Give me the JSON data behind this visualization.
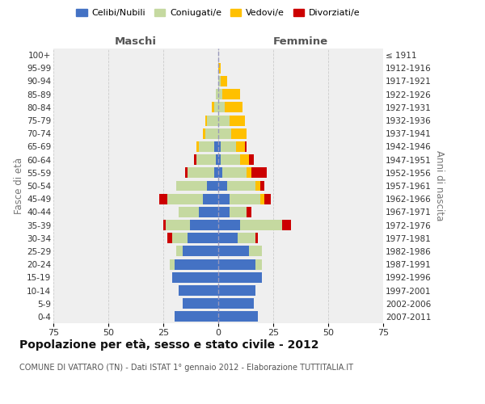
{
  "age_groups": [
    "0-4",
    "5-9",
    "10-14",
    "15-19",
    "20-24",
    "25-29",
    "30-34",
    "35-39",
    "40-44",
    "45-49",
    "50-54",
    "55-59",
    "60-64",
    "65-69",
    "70-74",
    "75-79",
    "80-84",
    "85-89",
    "90-94",
    "95-99",
    "100+"
  ],
  "birth_years": [
    "2007-2011",
    "2002-2006",
    "1997-2001",
    "1992-1996",
    "1987-1991",
    "1982-1986",
    "1977-1981",
    "1972-1976",
    "1967-1971",
    "1962-1966",
    "1957-1961",
    "1952-1956",
    "1947-1951",
    "1942-1946",
    "1937-1941",
    "1932-1936",
    "1927-1931",
    "1922-1926",
    "1917-1921",
    "1912-1916",
    "≤ 1911"
  ],
  "male": {
    "celibi": [
      20,
      16,
      18,
      21,
      20,
      16,
      14,
      13,
      9,
      7,
      5,
      2,
      1,
      2,
      0,
      0,
      0,
      0,
      0,
      0,
      0
    ],
    "coniugati": [
      0,
      0,
      0,
      0,
      2,
      3,
      7,
      11,
      9,
      16,
      14,
      12,
      9,
      7,
      6,
      5,
      2,
      1,
      0,
      0,
      0
    ],
    "vedovi": [
      0,
      0,
      0,
      0,
      0,
      0,
      0,
      0,
      0,
      0,
      0,
      0,
      0,
      1,
      1,
      1,
      1,
      0,
      0,
      0,
      0
    ],
    "divorziati": [
      0,
      0,
      0,
      0,
      0,
      0,
      2,
      1,
      0,
      4,
      0,
      1,
      1,
      0,
      0,
      0,
      0,
      0,
      0,
      0,
      0
    ]
  },
  "female": {
    "nubili": [
      18,
      16,
      17,
      20,
      17,
      14,
      9,
      10,
      5,
      5,
      4,
      2,
      1,
      1,
      0,
      0,
      0,
      0,
      0,
      0,
      0
    ],
    "coniugate": [
      0,
      0,
      0,
      0,
      3,
      6,
      8,
      19,
      8,
      14,
      13,
      11,
      9,
      7,
      6,
      5,
      3,
      2,
      1,
      0,
      0
    ],
    "vedove": [
      0,
      0,
      0,
      0,
      0,
      0,
      0,
      0,
      0,
      2,
      2,
      2,
      4,
      4,
      7,
      7,
      8,
      8,
      3,
      1,
      0
    ],
    "divorziate": [
      0,
      0,
      0,
      0,
      0,
      0,
      1,
      4,
      2,
      3,
      2,
      7,
      2,
      1,
      0,
      0,
      0,
      0,
      0,
      0,
      0
    ]
  },
  "colors": {
    "celibi": "#4472c4",
    "coniugati": "#c5d9a0",
    "vedovi": "#ffc000",
    "divorziati": "#cc0000"
  },
  "title": "Popolazione per età, sesso e stato civile - 2012",
  "subtitle": "COMUNE DI VATTARO (TN) - Dati ISTAT 1° gennaio 2012 - Elaborazione TUTTITALIA.IT",
  "xlabel_left": "Maschi",
  "xlabel_right": "Femmine",
  "ylabel_left": "Fasce di età",
  "ylabel_right": "Anni di nascita",
  "xlim": 75,
  "legend_labels": [
    "Celibi/Nubili",
    "Coniugati/e",
    "Vedovi/e",
    "Divorziati/e"
  ],
  "bg_color": "#ffffff",
  "plot_bg": "#efefef",
  "grid_color": "#cccccc"
}
